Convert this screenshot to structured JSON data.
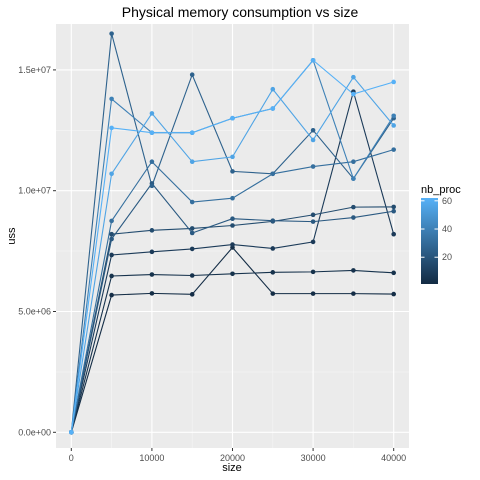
{
  "chart_data": {
    "type": "line",
    "title": "Physical memory consumption vs size",
    "xlabel": "size",
    "ylabel": "uss",
    "x": [
      0,
      5000,
      10000,
      15000,
      20000,
      25000,
      30000,
      35000,
      40000
    ],
    "xlim": [
      -1900,
      41900
    ],
    "ylim": [
      -650000,
      16900000
    ],
    "x_ticks": [
      0,
      10000,
      20000,
      30000,
      40000
    ],
    "x_tick_labels": [
      "0",
      "10000",
      "20000",
      "30000",
      "40000"
    ],
    "y_ticks": [
      0,
      5000000,
      10000000,
      15000000
    ],
    "y_tick_labels": [
      "0.0e+00",
      "5.0e+06",
      "1.0e+07",
      "1.5e+07"
    ],
    "grid": true,
    "color_scale": {
      "name": "nb_proc",
      "min": 1,
      "max": 62,
      "breaks": [
        20,
        40,
        60
      ],
      "break_labels": [
        "20",
        "40",
        "60"
      ],
      "low_color": "#132B43",
      "high_color": "#56B1F7"
    },
    "series": [
      {
        "nb_proc": 2,
        "values": [
          0,
          5680000,
          5750000,
          5710000,
          7650000,
          5740000,
          5740000,
          5740000,
          5720000
        ]
      },
      {
        "nb_proc": 4,
        "values": [
          0,
          6470000,
          6530000,
          6490000,
          6560000,
          6620000,
          6640000,
          6700000,
          6600000
        ]
      },
      {
        "nb_proc": 8,
        "values": [
          0,
          7340000,
          7470000,
          7590000,
          7770000,
          7610000,
          7880000,
          14100000,
          8200000
        ]
      },
      {
        "nb_proc": 16,
        "values": [
          0,
          8200000,
          8360000,
          8440000,
          8560000,
          8730000,
          9000000,
          9320000,
          9330000
        ]
      },
      {
        "nb_proc": 22,
        "values": [
          0,
          8000000,
          10300000,
          8250000,
          8840000,
          8760000,
          8720000,
          8890000,
          9150000
        ]
      },
      {
        "nb_proc": 26,
        "values": [
          0,
          16500000,
          10200000,
          14800000,
          10800000,
          10700000,
          12500000,
          10500000,
          13000000
        ]
      },
      {
        "nb_proc": 32,
        "values": [
          0,
          8750000,
          11200000,
          9530000,
          9690000,
          10700000,
          11000000,
          11200000,
          11700000
        ]
      },
      {
        "nb_proc": 40,
        "values": [
          0,
          13800000,
          12400000,
          12400000,
          13000000,
          13400000,
          15400000,
          10500000,
          13100000
        ]
      },
      {
        "nb_proc": 56,
        "values": [
          0,
          10700000,
          13200000,
          11200000,
          11400000,
          14200000,
          12100000,
          14700000,
          12700000
        ]
      },
      {
        "nb_proc": 62,
        "values": [
          0,
          12600000,
          12400000,
          12400000,
          13000000,
          13400000,
          15400000,
          14000000,
          14500000
        ]
      }
    ]
  }
}
